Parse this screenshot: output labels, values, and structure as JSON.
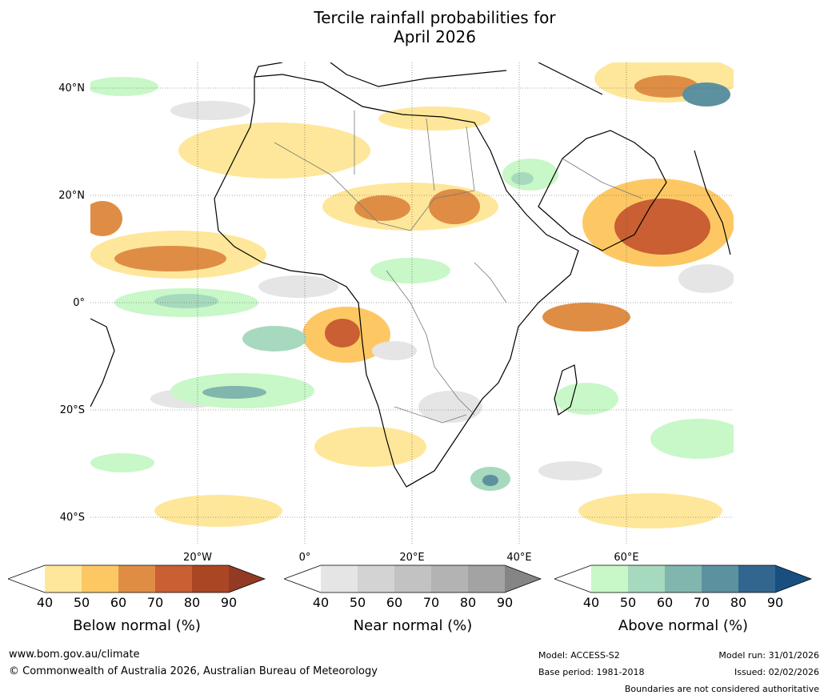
{
  "title": {
    "line1": "Tercile rainfall probabilities for",
    "line2": "April 2026"
  },
  "axes": {
    "lat_labels": [
      "40°N",
      "20°N",
      "0°",
      "20°S",
      "40°S"
    ],
    "lon_labels": [
      "20°W",
      "0°",
      "20°E",
      "40°E",
      "60°E"
    ]
  },
  "legends": [
    {
      "title": "Below normal (%)",
      "ticks": [
        "40",
        "50",
        "60",
        "70",
        "80",
        "90"
      ],
      "colors": [
        "#ffffff",
        "#fee79a",
        "#fdc864",
        "#df8d45",
        "#c95f32",
        "#ab4625",
        "#923a24"
      ]
    },
    {
      "title": "Near normal (%)",
      "ticks": [
        "40",
        "50",
        "60",
        "70",
        "80",
        "90"
      ],
      "colors": [
        "#ffffff",
        "#e5e5e5",
        "#d3d3d3",
        "#c2c2c2",
        "#b3b3b3",
        "#a3a3a3",
        "#858585"
      ]
    },
    {
      "title": "Above normal (%)",
      "ticks": [
        "40",
        "50",
        "60",
        "70",
        "80",
        "90"
      ],
      "colors": [
        "#ffffff",
        "#c8f7c8",
        "#a6d9bd",
        "#80b6ae",
        "#5c91a0",
        "#33668f",
        "#184f80"
      ]
    }
  ],
  "footer": {
    "website": "www.bom.gov.au/climate",
    "copyright": "© Commonwealth of Australia 2026, Australian Bureau of Meteorology",
    "model": "Model: ACCESS-S2",
    "base_period": "Base period: 1981-2018",
    "model_run": "Model run: 31/01/2026",
    "issued": "Issued: 02/02/2026",
    "disclaimer": "Boundaries are not considered authoritative"
  }
}
